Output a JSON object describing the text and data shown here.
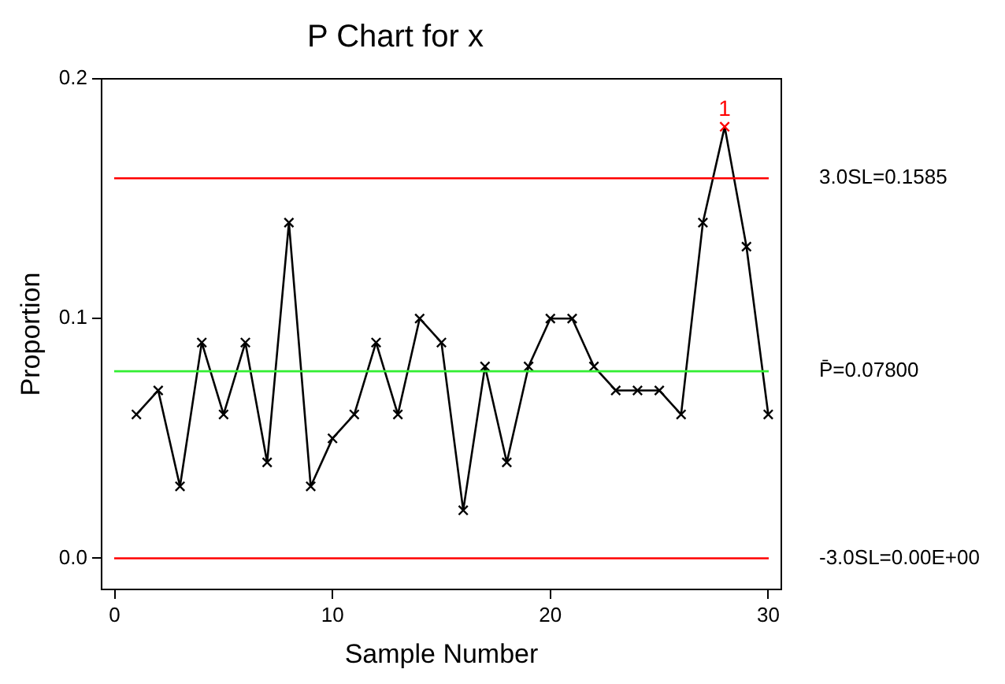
{
  "chart_data": {
    "type": "line",
    "title": "P Chart for x",
    "xlabel": "Sample Number",
    "ylabel": "Proportion",
    "x": [
      1,
      2,
      3,
      4,
      5,
      6,
      7,
      8,
      9,
      10,
      11,
      12,
      13,
      14,
      15,
      16,
      17,
      18,
      19,
      20,
      21,
      22,
      23,
      24,
      25,
      26,
      27,
      28,
      29,
      30
    ],
    "series": [
      {
        "color": "#000000",
        "colors": [
          "#000000",
          "#000000",
          "#000000",
          "#000000",
          "#000000",
          "#000000",
          "#000000",
          "#000000",
          "#000000",
          "#000000",
          "#000000",
          "#000000",
          "#000000",
          "#000000",
          "#000000",
          "#000000",
          "#000000",
          "#000000",
          "#000000",
          "#000000",
          "#000000",
          "#000000",
          "#000000",
          "#000000",
          "#000000",
          "#000000",
          "#000000",
          "#ff0000",
          "#000000",
          "#000000"
        ],
        "values": [
          0.06,
          0.07,
          0.03,
          0.09,
          0.06,
          0.09,
          0.04,
          0.14,
          0.03,
          0.05,
          0.06,
          0.09,
          0.06,
          0.1,
          0.09,
          0.02,
          0.08,
          0.04,
          0.08,
          0.1,
          0.1,
          0.08,
          0.07,
          0.07,
          0.07,
          0.06,
          0.14,
          0.18,
          0.13,
          0.06
        ]
      }
    ],
    "xlim": [
      -0.6,
      30.6
    ],
    "xticks": [
      0,
      10,
      20,
      30
    ],
    "ylim": [
      -0.013,
      0.2
    ],
    "yticks": [
      {
        "value": 0,
        "label": "0.0"
      },
      {
        "value": 0.1,
        "label": "0.1"
      },
      {
        "value": 0.2,
        "label": "0.2"
      }
    ],
    "ref_lines": [
      {
        "axis": "y",
        "value": 0.1585,
        "label": "3.0SL=0.1585",
        "color": "#ff0000"
      },
      {
        "axis": "y",
        "value": 0.078,
        "label": "P̄=0.07800",
        "color": "#33ee33"
      },
      {
        "axis": "y",
        "value": 0,
        "label": "-3.0SL=0.00E+00",
        "color": "#ff0000"
      }
    ],
    "annotations": [
      {
        "text": "1",
        "x": 28,
        "y": 0.18
      }
    ],
    "marker": "cross",
    "line_style": "solid",
    "grid": false,
    "legend": false
  }
}
